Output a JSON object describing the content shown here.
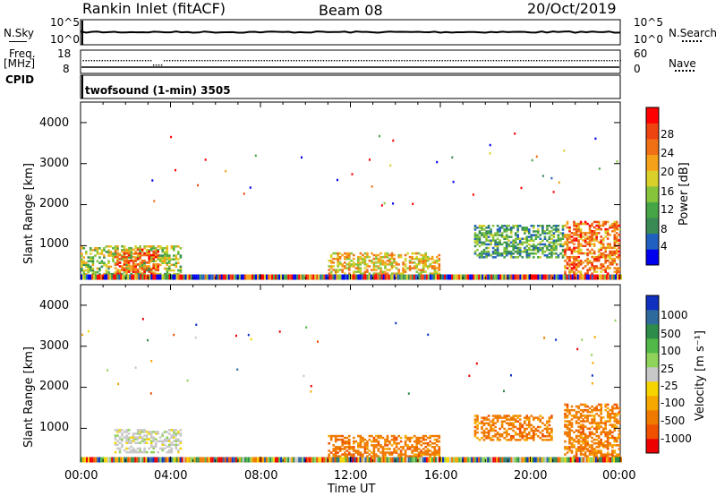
{
  "header": {
    "station": "Rankin Inlet (fitACF)",
    "beam": "Beam 08",
    "date": "20/Oct/2019"
  },
  "noise": {
    "left_label": "N.Sky",
    "right_label": "N.Search",
    "left_ticks": [
      "10^5",
      "10^0"
    ],
    "right_ticks": [
      "10^5",
      "10^0"
    ]
  },
  "freq": {
    "left_label_1": "Freq.",
    "left_label_2": "[MHz]",
    "left_ticks": [
      "18",
      "8"
    ],
    "right_ticks": [
      "60",
      "0"
    ],
    "right_label": "Nave"
  },
  "cpid": {
    "label": "CPID",
    "value": "twofsound (1-min) 3505"
  },
  "x_axis": {
    "label": "Time UT",
    "ticks": [
      "00:00",
      "04:00",
      "08:00",
      "12:00",
      "16:00",
      "20:00",
      "00:00"
    ]
  },
  "y_axis": {
    "label": "Slant Range [km]",
    "ticks": [
      "1000",
      "2000",
      "3000",
      "4000"
    ]
  },
  "power_colorbar": {
    "label": "Power [dB]",
    "ticks": [
      "4",
      "8",
      "12",
      "16",
      "20",
      "24",
      "28"
    ],
    "colors": [
      "#0000ee",
      "#2060c0",
      "#3a8a55",
      "#46a646",
      "#86c43a",
      "#d9d12a",
      "#f6a11a",
      "#f07015",
      "#ee4410",
      "#ff0000"
    ]
  },
  "velocity_colorbar": {
    "label": "Velocity [m s⁻¹]",
    "ticks": [
      "1000",
      "500",
      "100",
      "25",
      "-25",
      "-100",
      "-500",
      "-1000"
    ],
    "colors": [
      "#1030c0",
      "#2f6a9c",
      "#2e8c4a",
      "#52b848",
      "#8fd35a",
      "#c8c8c8",
      "#f6d400",
      "#f7a800",
      "#f07a00",
      "#f05000",
      "#ee0000"
    ]
  },
  "chart_data": [
    {
      "type": "heatmap",
      "title": "Power",
      "xlabel": "Time UT",
      "ylabel": "Slant Range [km]",
      "x": [
        "00:00",
        "04:00",
        "08:00",
        "12:00",
        "16:00",
        "20:00",
        "00:00"
      ],
      "xlim_hours": [
        0,
        24
      ],
      "ylim": [
        180,
        4500
      ],
      "colorbar": {
        "label": "Power [dB]",
        "range": [
          0,
          30
        ],
        "ticks": [
          4,
          8,
          12,
          16,
          20,
          24,
          28
        ]
      },
      "regions": [
        {
          "t_start": 0.0,
          "t_end": 4.5,
          "range_min": 200,
          "range_max": 1000,
          "typical_power_db": 14
        },
        {
          "t_start": 1.5,
          "t_end": 3.5,
          "range_min": 300,
          "range_max": 900,
          "typical_power_db": 24
        },
        {
          "t_start": 11.0,
          "t_end": 16.0,
          "range_min": 300,
          "range_max": 800,
          "typical_power_db": 18
        },
        {
          "t_start": 17.5,
          "t_end": 21.5,
          "range_min": 700,
          "range_max": 1500,
          "typical_power_db": 10
        },
        {
          "t_start": 21.5,
          "t_end": 24.0,
          "range_min": 300,
          "range_max": 1600,
          "typical_power_db": 22
        }
      ]
    },
    {
      "type": "heatmap",
      "title": "Velocity",
      "xlabel": "Time UT",
      "ylabel": "Slant Range [km]",
      "x": [
        "00:00",
        "04:00",
        "08:00",
        "12:00",
        "16:00",
        "20:00",
        "00:00"
      ],
      "xlim_hours": [
        0,
        24
      ],
      "ylim": [
        180,
        4500
      ],
      "colorbar": {
        "label": "Velocity [m s⁻¹]",
        "ticks": [
          1000,
          500,
          100,
          25,
          -25,
          -100,
          -500,
          -1000
        ]
      },
      "regions": [
        {
          "t_start": 1.5,
          "t_end": 4.5,
          "range_min": 400,
          "range_max": 950,
          "typical_velocity": 0
        },
        {
          "t_start": 11.0,
          "t_end": 16.0,
          "range_min": 300,
          "range_max": 800,
          "typical_velocity": -300
        },
        {
          "t_start": 17.5,
          "t_end": 21.0,
          "range_min": 700,
          "range_max": 1300,
          "typical_velocity": -300
        },
        {
          "t_start": 21.5,
          "t_end": 24.0,
          "range_min": 300,
          "range_max": 1600,
          "typical_velocity": -400
        }
      ]
    }
  ]
}
